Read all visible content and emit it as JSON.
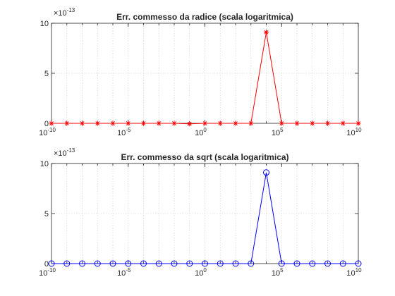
{
  "chart_data": [
    {
      "type": "line",
      "title": "Err. commesso da radice (scala logaritmica)",
      "xscale": "log",
      "xlim": [
        1e-10,
        10000000000.0
      ],
      "ylim": [
        0,
        10
      ],
      "y_multiplier": {
        "base": "×10",
        "exp": "-13"
      },
      "grid": true,
      "x_ticks": [
        {
          "value": 1e-10,
          "base": "10",
          "exp": "-10"
        },
        {
          "value": 1e-05,
          "base": "10",
          "exp": "-5"
        },
        {
          "value": 1,
          "base": "10",
          "exp": "0"
        },
        {
          "value": 100000.0,
          "base": "10",
          "exp": "5"
        },
        {
          "value": 10000000000.0,
          "base": "10",
          "exp": "10"
        }
      ],
      "y_ticks": [
        {
          "value": 0,
          "label": "0"
        },
        {
          "value": 5,
          "label": "5"
        },
        {
          "value": 10,
          "label": "10"
        }
      ],
      "series": [
        {
          "color": "#ff0000",
          "marker": "asterisk",
          "x": [
            1e-10,
            1e-09,
            1e-08,
            1e-07,
            1e-06,
            1e-05,
            0.0001,
            0.001,
            0.01,
            0.1,
            1,
            10.0,
            100.0,
            1000.0,
            10000.0,
            100000.0,
            1000000.0,
            10000000.0,
            100000000.0,
            1000000000.0,
            10000000000.0
          ],
          "y": [
            0,
            0,
            0,
            0,
            0,
            0,
            0,
            0,
            0,
            -0.05,
            0,
            0,
            0,
            0,
            9.1,
            0,
            0,
            0,
            0,
            0,
            0
          ]
        }
      ]
    },
    {
      "type": "line",
      "title": "Err. commesso da sqrt (scala logaritmica)",
      "xscale": "log",
      "xlim": [
        1e-10,
        10000000000.0
      ],
      "ylim": [
        0,
        10
      ],
      "y_multiplier": {
        "base": "×10",
        "exp": "-13"
      },
      "grid": true,
      "x_ticks": [
        {
          "value": 1e-10,
          "base": "10",
          "exp": "-10"
        },
        {
          "value": 1e-05,
          "base": "10",
          "exp": "-5"
        },
        {
          "value": 1,
          "base": "10",
          "exp": "0"
        },
        {
          "value": 100000.0,
          "base": "10",
          "exp": "5"
        },
        {
          "value": 10000000000.0,
          "base": "10",
          "exp": "10"
        }
      ],
      "y_ticks": [
        {
          "value": 0,
          "label": "0"
        },
        {
          "value": 5,
          "label": "5"
        },
        {
          "value": 10,
          "label": "10"
        }
      ],
      "series": [
        {
          "color": "#0000ff",
          "marker": "circle",
          "x": [
            1e-10,
            1e-09,
            1e-08,
            1e-07,
            1e-06,
            1e-05,
            0.0001,
            0.001,
            0.01,
            0.1,
            1,
            10.0,
            100.0,
            1000.0,
            10000.0,
            100000.0,
            1000000.0,
            10000000.0,
            100000000.0,
            1000000000.0,
            10000000000.0
          ],
          "y": [
            0,
            0,
            0,
            0,
            0,
            0,
            0,
            0,
            0,
            0,
            0,
            0,
            0,
            0,
            9.1,
            0,
            0,
            0,
            0,
            0,
            0
          ]
        }
      ]
    }
  ]
}
